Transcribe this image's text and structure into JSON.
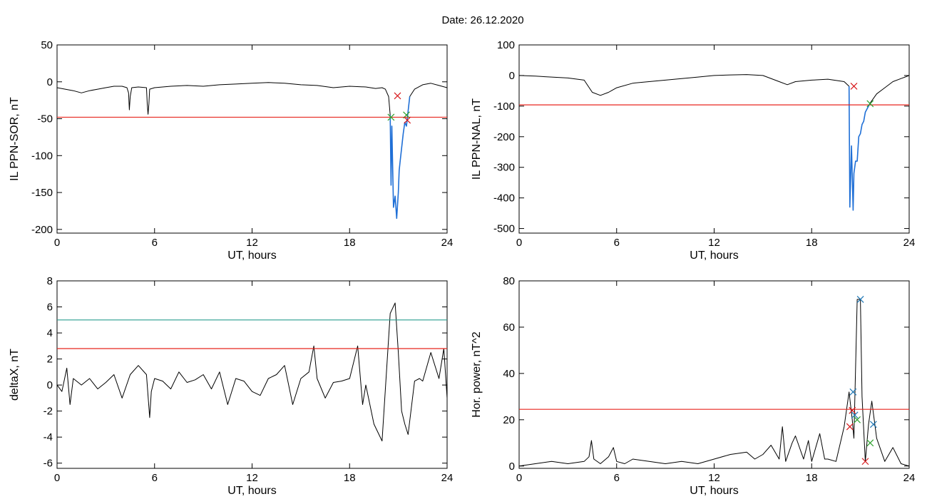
{
  "title": "Date:  26.12.2020",
  "colors": {
    "signal": "#000000",
    "threshold_red": "#e8261f",
    "threshold_teal": "#2a9d8f",
    "event_blue": "#1f6fd6",
    "marker_red": "#d7191c",
    "marker_green": "#2ca02c",
    "marker_blue": "#1f77b4"
  },
  "chart_data": [
    {
      "id": "sor",
      "type": "line",
      "ylabel": "IL PPN-SOR, nT",
      "xlabel": "UT, hours",
      "xlim": [
        0,
        24
      ],
      "ylim": [
        -205,
        50
      ],
      "xticks": [
        0,
        6,
        12,
        18,
        24
      ],
      "yticks": [
        50,
        0,
        -50,
        -100,
        -150,
        -200
      ],
      "series": [
        {
          "style": "black",
          "x": [
            0,
            0.5,
            1.0,
            1.5,
            2.0,
            2.5,
            3.0,
            3.5,
            4.0,
            4.3,
            4.4,
            4.45,
            4.5,
            4.6,
            5.0,
            5.5,
            5.55,
            5.6,
            5.65,
            5.7,
            6.0,
            7.0,
            8.0,
            9.0,
            10.0,
            11.0,
            12.0,
            13.0,
            14.0,
            15.0,
            16.0,
            17.0,
            18.0,
            19.0,
            19.6,
            20.0,
            20.2,
            20.4,
            20.5
          ],
          "y": [
            -8,
            -10,
            -12,
            -15,
            -12,
            -10,
            -8,
            -6,
            -6,
            -8,
            -15,
            -38,
            -20,
            -8,
            -7,
            -8,
            -30,
            -44,
            -30,
            -10,
            -8,
            -6,
            -5,
            -6,
            -4,
            -3,
            -2,
            -1,
            -2,
            -4,
            -5,
            -8,
            -6,
            -7,
            -9,
            -8,
            -10,
            -20,
            -45
          ]
        },
        {
          "style": "blue",
          "x": [
            20.5,
            20.55,
            20.6,
            20.7,
            20.8,
            20.9,
            21.0,
            21.05,
            21.1,
            21.2,
            21.3,
            21.4,
            21.5,
            21.6,
            21.7
          ],
          "y": [
            -45,
            -140,
            -60,
            -170,
            -155,
            -185,
            -150,
            -120,
            -110,
            -90,
            -70,
            -55,
            -60,
            -40,
            -20
          ]
        },
        {
          "style": "black",
          "x": [
            21.7,
            22.0,
            22.5,
            23.0,
            23.5,
            24.0
          ],
          "y": [
            -20,
            -10,
            -4,
            -2,
            -5,
            -8
          ]
        }
      ],
      "thresholds": [
        {
          "value": -48,
          "color": "red"
        }
      ],
      "markers": [
        {
          "x": 20.55,
          "y": -48,
          "color": "green"
        },
        {
          "x": 20.95,
          "y": -19,
          "color": "red"
        },
        {
          "x": 21.5,
          "y": -45,
          "color": "green"
        },
        {
          "x": 21.55,
          "y": -52,
          "color": "red"
        }
      ]
    },
    {
      "id": "nal",
      "type": "line",
      "ylabel": "IL PPN-NAL, nT",
      "xlabel": "UT, hours",
      "xlim": [
        0,
        24
      ],
      "ylim": [
        -515,
        100
      ],
      "xticks": [
        0,
        6,
        12,
        18,
        24
      ],
      "yticks": [
        100,
        0,
        -100,
        -200,
        -300,
        -400,
        -500
      ],
      "series": [
        {
          "style": "black",
          "x": [
            0,
            1.0,
            2.0,
            3.0,
            4.0,
            4.5,
            5.0,
            5.5,
            6.0,
            7.0,
            8.0,
            9.0,
            10.0,
            11.0,
            12.0,
            13.0,
            14.0,
            15.0,
            16.0,
            16.5,
            17.0,
            18.0,
            19.0,
            20.0,
            20.3
          ],
          "y": [
            0,
            -2,
            -5,
            -8,
            -15,
            -55,
            -65,
            -55,
            -40,
            -25,
            -20,
            -15,
            -10,
            -5,
            0,
            2,
            3,
            0,
            -20,
            -30,
            -20,
            -15,
            -12,
            -20,
            -35
          ]
        },
        {
          "style": "blue",
          "x": [
            20.3,
            20.35,
            20.45,
            20.5,
            20.55,
            20.6,
            20.7,
            20.8,
            20.9,
            21.0,
            21.1,
            21.2,
            21.3,
            21.5,
            21.6
          ],
          "y": [
            -35,
            -430,
            -230,
            -330,
            -440,
            -320,
            -280,
            -280,
            -200,
            -190,
            -160,
            -150,
            -120,
            -100,
            -90
          ]
        },
        {
          "style": "black",
          "x": [
            21.6,
            22.0,
            22.5,
            23.0,
            23.5,
            24.0
          ],
          "y": [
            -90,
            -60,
            -40,
            -20,
            -10,
            0
          ]
        }
      ],
      "thresholds": [
        {
          "value": -96,
          "color": "red"
        }
      ],
      "markers": [
        {
          "x": 20.6,
          "y": -35,
          "color": "red"
        },
        {
          "x": 21.6,
          "y": -92,
          "color": "green"
        }
      ]
    },
    {
      "id": "deltax",
      "type": "line",
      "ylabel": "deltaX, nT",
      "xlabel": "UT, hours",
      "xlim": [
        0,
        24
      ],
      "ylim": [
        -6.4,
        8
      ],
      "xticks": [
        0,
        6,
        12,
        18,
        24
      ],
      "yticks": [
        8,
        6,
        4,
        2,
        0,
        -2,
        -4,
        -6
      ],
      "series": [
        {
          "style": "black",
          "x": [
            0,
            0.3,
            0.6,
            0.8,
            1.0,
            1.5,
            2.0,
            2.5,
            3.0,
            3.5,
            4.0,
            4.5,
            5.0,
            5.5,
            5.7,
            5.8,
            6.0,
            6.5,
            7.0,
            7.5,
            8.0,
            8.5,
            9.0,
            9.5,
            10.0,
            10.5,
            11.0,
            11.5,
            12.0,
            12.5,
            13.0,
            13.5,
            14.0,
            14.5,
            15.0,
            15.5,
            15.8,
            16.0,
            16.5,
            17.0,
            17.5,
            18.0,
            18.5,
            18.8,
            19.0,
            19.5,
            20.0,
            20.5,
            20.8,
            21.0,
            21.2,
            21.4,
            21.6,
            22.0,
            22.3,
            22.5,
            23.0,
            23.5,
            23.8,
            24.0
          ],
          "y": [
            0,
            -0.5,
            1.3,
            -1.5,
            0.5,
            0,
            0.5,
            -0.3,
            0.2,
            0.8,
            -1.0,
            0.8,
            1.5,
            0.8,
            -2.5,
            -0.5,
            0.5,
            0.3,
            -0.3,
            1.0,
            0.2,
            0.4,
            0.8,
            -0.3,
            1.0,
            -1.5,
            0.5,
            0.3,
            -0.5,
            -0.8,
            0.5,
            0.8,
            1.5,
            -1.5,
            0.5,
            1.0,
            3.0,
            0.5,
            -1.0,
            0.2,
            0.3,
            0.5,
            3.0,
            -1.5,
            0,
            -3.0,
            -4.3,
            5.5,
            6.3,
            2.5,
            -2.0,
            -3.0,
            -3.8,
            0.3,
            0.5,
            0.3,
            2.5,
            0.5,
            2.8,
            -1.0
          ]
        }
      ],
      "thresholds": [
        {
          "value": 5.0,
          "color": "teal"
        },
        {
          "value": 2.8,
          "color": "red"
        }
      ],
      "markers": []
    },
    {
      "id": "power",
      "type": "line",
      "ylabel": "Hor. power, nT^2",
      "xlabel": "UT, hours",
      "xlim": [
        0,
        24
      ],
      "ylim": [
        -1,
        80
      ],
      "xticks": [
        0,
        6,
        12,
        18,
        24
      ],
      "yticks": [
        80,
        60,
        40,
        20,
        0
      ],
      "series": [
        {
          "style": "black",
          "x": [
            0,
            1.0,
            2.0,
            3.0,
            4.0,
            4.3,
            4.45,
            4.6,
            5.0,
            5.5,
            5.8,
            6.0,
            6.5,
            7.0,
            8.0,
            9.0,
            10.0,
            11.0,
            12.0,
            13.0,
            14.0,
            14.5,
            15.0,
            15.5,
            16.0,
            16.2,
            16.4,
            16.8,
            17.0,
            17.5,
            17.8,
            18.0,
            18.5,
            18.8,
            19.0,
            19.5,
            20.0,
            20.3,
            20.5,
            20.6,
            20.8,
            21.0,
            21.1,
            21.3,
            21.5,
            21.7,
            22.0,
            22.5,
            23.0,
            23.5,
            24.0
          ],
          "y": [
            0,
            1,
            2,
            1,
            2,
            4,
            11,
            3,
            1,
            4,
            8,
            2,
            1,
            3,
            2,
            1,
            2,
            1,
            3,
            5,
            6,
            3,
            5,
            9,
            3,
            17,
            2,
            10,
            13,
            3,
            11,
            2,
            14,
            3,
            3,
            2,
            17,
            32,
            20,
            12,
            72,
            72,
            30,
            2,
            18,
            28,
            12,
            2,
            8,
            1,
            0
          ]
        }
      ],
      "thresholds": [
        {
          "value": 24.5,
          "color": "red"
        }
      ],
      "markers": [
        {
          "x": 20.55,
          "y": 32,
          "color": "blue"
        },
        {
          "x": 20.5,
          "y": 24,
          "color": "red"
        },
        {
          "x": 20.65,
          "y": 22,
          "color": "blue"
        },
        {
          "x": 20.35,
          "y": 17,
          "color": "red"
        },
        {
          "x": 20.8,
          "y": 20,
          "color": "green"
        },
        {
          "x": 21.0,
          "y": 72,
          "color": "blue"
        },
        {
          "x": 21.3,
          "y": 2,
          "color": "red"
        },
        {
          "x": 21.6,
          "y": 10,
          "color": "green"
        },
        {
          "x": 21.8,
          "y": 18,
          "color": "blue"
        }
      ]
    }
  ]
}
